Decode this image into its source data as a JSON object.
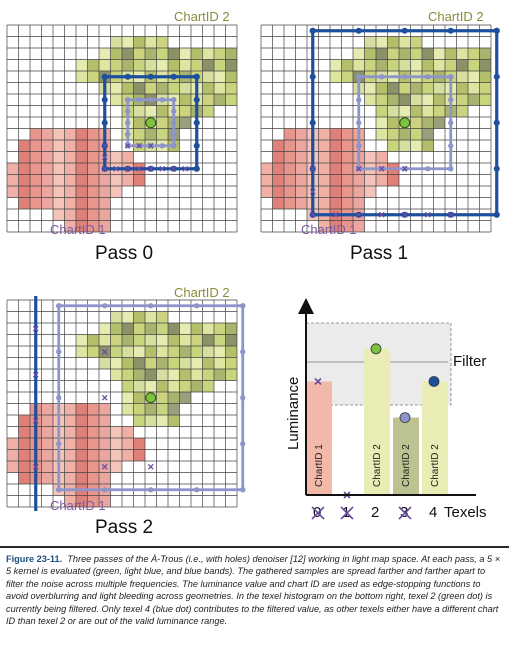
{
  "panels": [
    {
      "chart_label_top": "ChartID 2",
      "chart_label_bottom": "ChartID 1",
      "pass_label": "Pass 0"
    },
    {
      "chart_label_top": "ChartID 2",
      "chart_label_bottom": "ChartID 1",
      "pass_label": "Pass 1"
    },
    {
      "chart_label_top": "ChartID 2",
      "chart_label_bottom": "ChartID 1",
      "pass_label": "Pass 2"
    }
  ],
  "histogram": {
    "ylabel": "Luminance",
    "filter_label": "Filter",
    "xlabel": "Texels",
    "texels": [
      {
        "index": "0",
        "chart": "ChartID 1",
        "luminance": 0.66,
        "bar_color": "#f2b8aa",
        "marker": "x",
        "rejected": true
      },
      {
        "index": "1",
        "chart": "",
        "luminance": 0.0,
        "bar_color": "",
        "marker": "x",
        "rejected": true
      },
      {
        "index": "2",
        "chart": "ChartID 2",
        "luminance": 0.85,
        "bar_color": "#e9ecb5",
        "marker": "green-dot",
        "rejected": false
      },
      {
        "index": "3",
        "chart": "ChartID 2",
        "luminance": 0.45,
        "bar_color": "#bcc390",
        "marker": "light-blue-dot",
        "rejected": true
      },
      {
        "index": "4",
        "chart": "ChartID 2",
        "luminance": 0.66,
        "bar_color": "#e9ecb5",
        "marker": "blue-dot",
        "rejected": false
      }
    ],
    "filter_range": [
      0.52,
      1.0
    ]
  },
  "colors": {
    "chart_label": "#8b8b3a",
    "chart1_label": "#7e5aa0",
    "green_dot": "#7fc241",
    "light_blue": "#8d94c9",
    "blue": "#1d4f9c"
  },
  "caption": {
    "label": "Figure 23-11.",
    "text": "Three passes of the À-Trous (i.e., with holes) denoiser [12] working in light map space. At each pass, a 5 × 5 kernel is evaluated (green, light blue, and blue bands). The gathered samples are spread farther and farther apart to filter the noise across multiple frequencies. The luminance value and chart ID are used as edge-stopping functions to avoid overblurring and light bleeding across geometries. In the texel histogram on the bottom right, texel 2 (green dot) is currently being filtered. Only texel 4 (blue dot) contributes to the filtered value, as other texels either have a different chart ID than texel 2 or are out of the valid luminance range."
  }
}
